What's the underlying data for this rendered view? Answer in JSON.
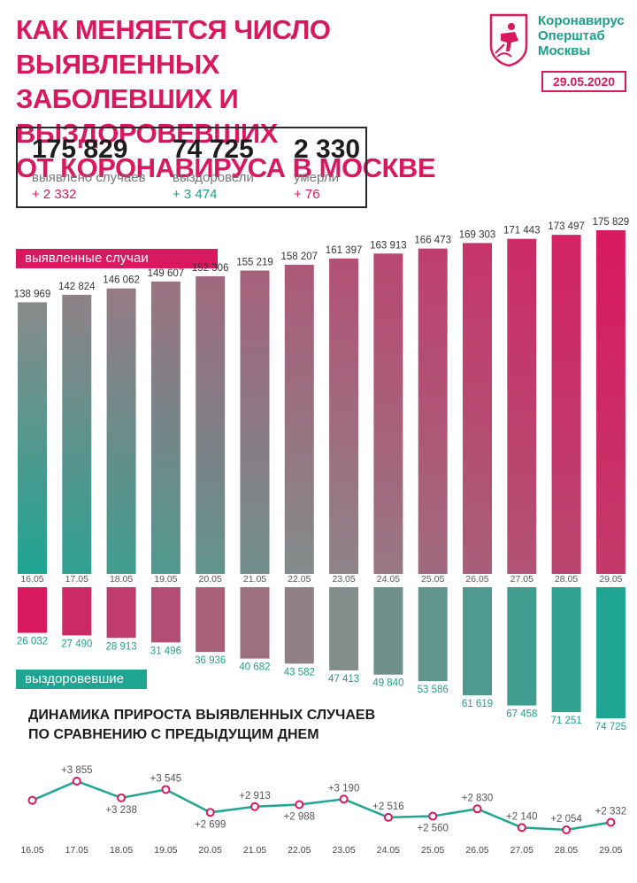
{
  "header": {
    "title_lines": [
      "КАК МЕНЯЕТСЯ ЧИСЛО ВЫЯВЛЕННЫХ",
      "ЗАБОЛЕВШИХ И ВЫЗДОРОВЕВШИХ",
      "ОТ КОРОНАВИРУСА В МОСКВЕ"
    ],
    "org_lines": [
      "Коронавирус",
      "Оперштаб",
      "Москвы"
    ],
    "date": "29.05.2020",
    "logo_icon": "moscow-coat-of-arms-icon"
  },
  "summary": {
    "cases": {
      "value": "175 829",
      "label": "выявлено случаев",
      "delta": "+ 2 332"
    },
    "recovered": {
      "value": "74 725",
      "label": "выздоровели",
      "delta": "+ 3 474"
    },
    "deaths": {
      "value": "2 330",
      "label": "умерли",
      "delta": "+ 76"
    }
  },
  "labels": {
    "cases_tag": "выявленные случаи",
    "recovered_tag": "выздоровевшие",
    "growth_title_lines": [
      "ДИНАМИКА ПРИРОСТА ВЫЯВЛЕННЫХ СЛУЧАЕВ",
      "ПО СРАВНЕНИЮ С ПРЕДЫДУЩИМ ДНЕМ"
    ]
  },
  "colors": {
    "accent": "#d8195f",
    "teal": "#1fa592",
    "grey": "#8a8a8a"
  },
  "chart_data": [
    {
      "type": "bar",
      "categories": [
        "16.05",
        "17.05",
        "18.05",
        "19.05",
        "20.05",
        "21.05",
        "22.05",
        "23.05",
        "24.05",
        "25.05",
        "26.05",
        "27.05",
        "28.05",
        "29.05"
      ],
      "series": [
        {
          "name": "выявленные случаи",
          "values": [
            138969,
            142824,
            146062,
            149607,
            152306,
            155219,
            158207,
            161397,
            163913,
            166473,
            169303,
            171443,
            173497,
            175829
          ]
        }
      ],
      "value_labels": [
        "138 969",
        "142 824",
        "146 062",
        "149 607",
        "152 306",
        "155 219",
        "158 207",
        "161 397",
        "163 913",
        "166 473",
        "169 303",
        "171 443",
        "173 497",
        "175 829"
      ]
    },
    {
      "type": "bar",
      "categories": [
        "16.05",
        "17.05",
        "18.05",
        "19.05",
        "20.05",
        "21.05",
        "22.05",
        "23.05",
        "24.05",
        "25.05",
        "26.05",
        "27.05",
        "28.05",
        "29.05"
      ],
      "series": [
        {
          "name": "выздоровевшие",
          "values": [
            26032,
            27490,
            28913,
            31496,
            36936,
            40682,
            43582,
            47413,
            49840,
            53586,
            61619,
            67458,
            71251,
            74725
          ]
        }
      ],
      "value_labels": [
        "26 032",
        "27 490",
        "28 913",
        "31 496",
        "36 936",
        "40 682",
        "43 582",
        "47 413",
        "49 840",
        "53 586",
        "61 619",
        "67 458",
        "71 251",
        "74 725"
      ]
    },
    {
      "type": "line",
      "title": "ДИНАМИКА ПРИРОСТА ВЫЯВЛЕННЫХ СЛУЧАЕВ ПО СРАВНЕНИЮ С ПРЕДЫДУЩИМ ДНЕМ",
      "x": [
        "16.05",
        "17.05",
        "18.05",
        "19.05",
        "20.05",
        "21.05",
        "22.05",
        "23.05",
        "24.05",
        "25.05",
        "26.05",
        "27.05",
        "28.05",
        "29.05"
      ],
      "values": [
        3145,
        3855,
        3238,
        3545,
        2699,
        2913,
        2988,
        3190,
        2516,
        2560,
        2830,
        2140,
        2054,
        2332
      ],
      "point_labels": [
        "",
        "+3 855",
        "+3 238",
        "+3 545",
        "+2 699",
        "+2 913",
        "+2 988",
        "+3 190",
        "+2 516",
        "+2 560",
        "+2 830",
        "+2 140",
        "+2 054",
        "+2 332"
      ]
    }
  ]
}
